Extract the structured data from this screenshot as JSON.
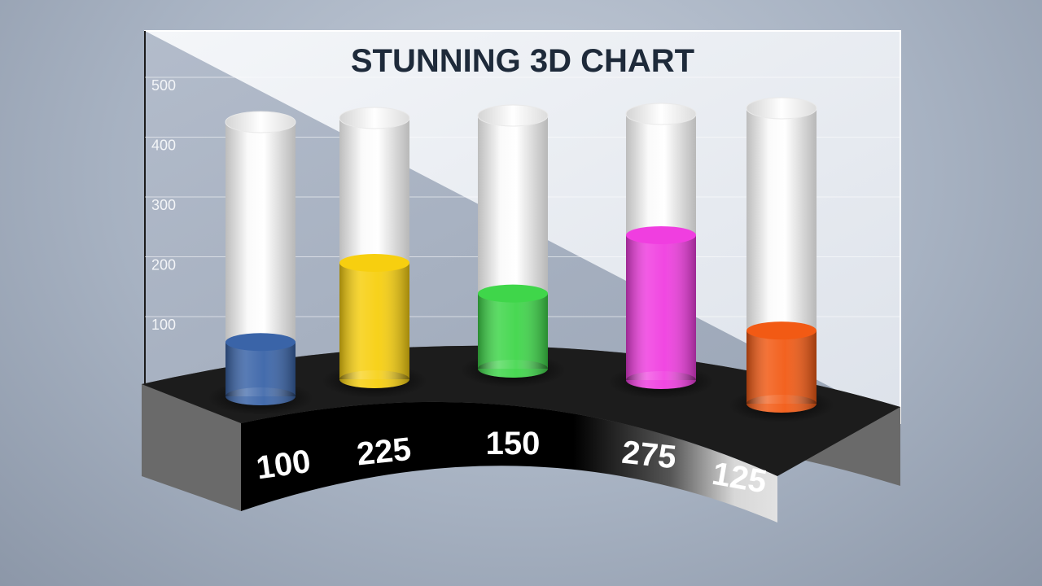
{
  "chart_data": {
    "type": "bar",
    "title": "STUNNING 3D CHART",
    "categories": [
      "",
      "",
      "",
      "",
      ""
    ],
    "values": [
      100,
      225,
      150,
      275,
      125
    ],
    "value_labels": [
      "100",
      "225",
      "150",
      "275",
      "125"
    ],
    "colors": [
      "#3a64a8",
      "#f7cf0f",
      "#3fd64a",
      "#f03ee0",
      "#f25a14"
    ],
    "y_ticks": [
      "100",
      "200",
      "300",
      "400",
      "500"
    ],
    "ylim": [
      0,
      500
    ],
    "grid": true,
    "legend": "none",
    "xlabel": "",
    "ylabel": ""
  }
}
